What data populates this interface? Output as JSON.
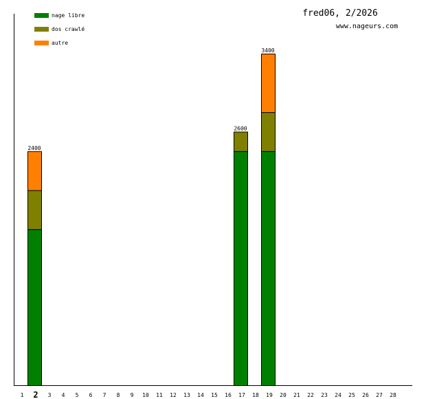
{
  "chart_data": {
    "type": "bar",
    "stacked": true,
    "title": "fred06, 2/2026",
    "subtitle": "www.nageurs.com",
    "xlabel": "",
    "ylabel": "",
    "ylim": [
      0,
      3400
    ],
    "highlighted_category": "2",
    "categories": [
      "1",
      "2",
      "3",
      "4",
      "5",
      "6",
      "7",
      "8",
      "9",
      "10",
      "11",
      "12",
      "13",
      "14",
      "15",
      "16",
      "17",
      "18",
      "19",
      "20",
      "21",
      "22",
      "23",
      "24",
      "25",
      "26",
      "27",
      "28"
    ],
    "series": [
      {
        "name": "nage libre",
        "color": "#008000",
        "values": [
          0,
          1600,
          0,
          0,
          0,
          0,
          0,
          0,
          0,
          0,
          0,
          0,
          0,
          0,
          0,
          0,
          2400,
          0,
          2400,
          0,
          0,
          0,
          0,
          0,
          0,
          0,
          0,
          0
        ]
      },
      {
        "name": "dos crawlé",
        "color": "#808000",
        "values": [
          0,
          400,
          0,
          0,
          0,
          0,
          0,
          0,
          0,
          0,
          0,
          0,
          0,
          0,
          0,
          0,
          200,
          0,
          400,
          0,
          0,
          0,
          0,
          0,
          0,
          0,
          0,
          0
        ]
      },
      {
        "name": "autre",
        "color": "#ff8000",
        "values": [
          0,
          400,
          0,
          0,
          0,
          0,
          0,
          0,
          0,
          0,
          0,
          0,
          0,
          0,
          0,
          0,
          0,
          0,
          600,
          0,
          0,
          0,
          0,
          0,
          0,
          0,
          0,
          0
        ]
      }
    ],
    "totals": [
      0,
      2400,
      0,
      0,
      0,
      0,
      0,
      0,
      0,
      0,
      0,
      0,
      0,
      0,
      0,
      0,
      2600,
      0,
      3400,
      0,
      0,
      0,
      0,
      0,
      0,
      0,
      0,
      0
    ],
    "legend_position": "top-left",
    "grid": false
  }
}
